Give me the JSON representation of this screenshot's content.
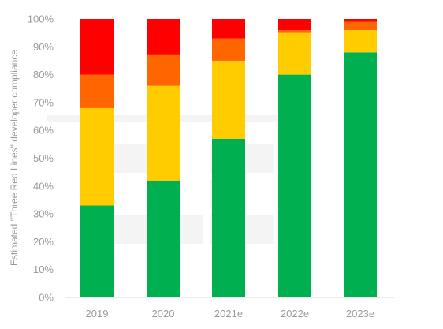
{
  "chart_data": {
    "type": "bar",
    "stacked": true,
    "title": "",
    "xlabel": "",
    "ylabel": "Estimated \"Three Red Lines\" developer compliance",
    "categories": [
      "2019",
      "2020",
      "2021e",
      "2022e",
      "2023e"
    ],
    "ylim": [
      0,
      100
    ],
    "yticks": [
      "0%",
      "10%",
      "20%",
      "30%",
      "40%",
      "50%",
      "60%",
      "70%",
      "80%",
      "90%",
      "100%"
    ],
    "grid": false,
    "legend": "none",
    "series": [
      {
        "color": "#00b050",
        "values": [
          33,
          42,
          57,
          80,
          88
        ]
      },
      {
        "color": "#ffcc00",
        "values": [
          35,
          34,
          28,
          15,
          8
        ]
      },
      {
        "color": "#ff6600",
        "values": [
          12,
          11,
          8,
          1,
          3
        ]
      },
      {
        "color": "#ff0000",
        "values": [
          20,
          13,
          7,
          4,
          1
        ]
      }
    ]
  }
}
